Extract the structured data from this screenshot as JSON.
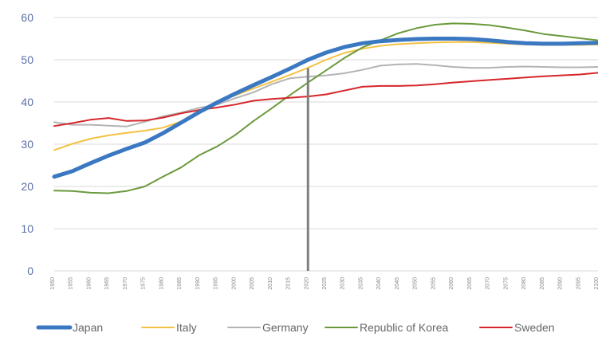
{
  "chart_data": {
    "type": "line",
    "title": "",
    "xlabel": "",
    "ylabel": "",
    "ylim": [
      0,
      60
    ],
    "yticks": [
      0,
      10,
      20,
      30,
      40,
      50,
      60
    ],
    "grid": true,
    "legend_position": "bottom",
    "x": [
      1950,
      1955,
      1960,
      1965,
      1970,
      1975,
      1980,
      1985,
      1990,
      1995,
      2000,
      2005,
      2010,
      2015,
      2020,
      2025,
      2030,
      2035,
      2040,
      2045,
      2050,
      2055,
      2060,
      2065,
      2070,
      2075,
      2080,
      2085,
      2090,
      2095,
      2100
    ],
    "xtick_labels": [
      "1950",
      "1955",
      "1960",
      "1965",
      "1970",
      "1975",
      "1980",
      "1985",
      "1990",
      "1995",
      "2000",
      "2005",
      "2010",
      "2015",
      "2020",
      "2025",
      "2030",
      "2035",
      "2040",
      "2045",
      "2050",
      "2055",
      "2060",
      "2065",
      "2070",
      "2075",
      "2080",
      "2085",
      "2090",
      "2095",
      "2100"
    ],
    "reference_line_x": 2020,
    "series": [
      {
        "name": "Japan",
        "color": "#3a78c2",
        "width": 5,
        "values": [
          22.3,
          23.6,
          25.5,
          27.3,
          28.9,
          30.4,
          32.6,
          35.1,
          37.6,
          39.9,
          42.0,
          44.0,
          45.9,
          47.9,
          50.0,
          51.7,
          53.0,
          53.9,
          54.4,
          54.7,
          54.9,
          55.0,
          55.0,
          54.9,
          54.6,
          54.2,
          53.9,
          53.8,
          53.8,
          53.9,
          54.0
        ]
      },
      {
        "name": "Italy",
        "color": "#f4c242",
        "width": 2,
        "values": [
          28.6,
          30.1,
          31.3,
          32.1,
          32.7,
          33.2,
          33.9,
          35.4,
          37.9,
          40.1,
          41.6,
          43.2,
          44.8,
          46.4,
          48.1,
          50.0,
          51.6,
          52.6,
          53.3,
          53.7,
          53.9,
          54.1,
          54.2,
          54.2,
          54.0,
          53.8,
          53.6,
          53.5,
          53.5,
          53.5,
          53.6
        ]
      },
      {
        "name": "Germany",
        "color": "#b4b4b4",
        "width": 2,
        "values": [
          35.2,
          34.6,
          34.6,
          34.4,
          34.2,
          35.3,
          36.6,
          37.5,
          38.6,
          39.4,
          40.9,
          42.3,
          44.2,
          45.6,
          46.0,
          46.3,
          46.8,
          47.6,
          48.6,
          48.9,
          49.0,
          48.7,
          48.3,
          48.1,
          48.1,
          48.3,
          48.4,
          48.3,
          48.2,
          48.2,
          48.3
        ]
      },
      {
        "name": "Republic of Korea",
        "color": "#6a9a3d",
        "width": 2,
        "values": [
          19.0,
          18.9,
          18.5,
          18.4,
          18.9,
          20.0,
          22.3,
          24.5,
          27.4,
          29.5,
          32.2,
          35.5,
          38.5,
          41.6,
          44.6,
          47.5,
          50.4,
          52.9,
          54.6,
          56.3,
          57.5,
          58.3,
          58.6,
          58.5,
          58.2,
          57.6,
          56.9,
          56.1,
          55.6,
          55.1,
          54.6
        ]
      },
      {
        "name": "Sweden",
        "color": "#d6262b",
        "width": 2,
        "values": [
          34.3,
          35.0,
          35.8,
          36.2,
          35.5,
          35.6,
          36.3,
          37.3,
          38.1,
          38.7,
          39.4,
          40.3,
          40.7,
          41.0,
          41.3,
          41.8,
          42.7,
          43.6,
          43.8,
          43.8,
          43.9,
          44.2,
          44.6,
          44.9,
          45.2,
          45.5,
          45.8,
          46.1,
          46.3,
          46.5,
          46.9
        ]
      }
    ]
  }
}
